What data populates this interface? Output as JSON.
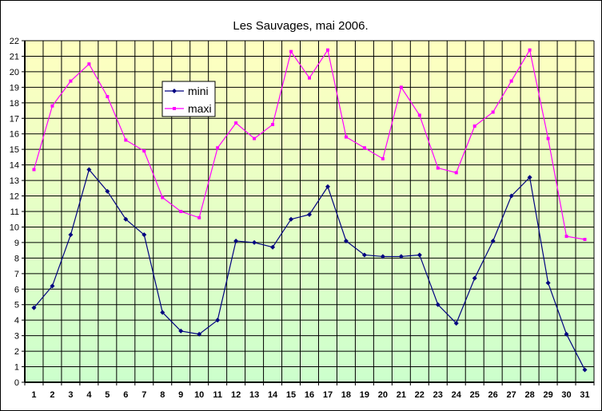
{
  "chart_data": {
    "type": "line",
    "title": "Les Sauvages, mai 2006.",
    "xlabel": "",
    "ylabel": "",
    "ylim": [
      0,
      22
    ],
    "grid": true,
    "legend_position": "upper-left-inside",
    "categories": [
      "1",
      "2",
      "3",
      "4",
      "5",
      "6",
      "7",
      "8",
      "9",
      "10",
      "11",
      "12",
      "13",
      "14",
      "15",
      "16",
      "17",
      "18",
      "19",
      "20",
      "21",
      "22",
      "23",
      "24",
      "25",
      "26",
      "27",
      "28",
      "29",
      "30",
      "31"
    ],
    "yticks": [
      "0",
      "1",
      "2",
      "3",
      "4",
      "5",
      "6",
      "7",
      "8",
      "9",
      "10",
      "11",
      "12",
      "13",
      "14",
      "15",
      "16",
      "17",
      "18",
      "19",
      "20",
      "21",
      "22"
    ],
    "series": [
      {
        "name": "mini",
        "color": "#000080",
        "marker": "diamond",
        "values": [
          4.8,
          6.2,
          9.5,
          13.7,
          12.3,
          10.5,
          9.5,
          4.5,
          3.3,
          3.1,
          4.0,
          9.1,
          9.0,
          8.7,
          10.5,
          10.8,
          12.6,
          9.1,
          8.2,
          8.1,
          8.1,
          8.2,
          5.0,
          3.8,
          6.7,
          9.1,
          12.0,
          13.2,
          6.4,
          3.1,
          0.8
        ]
      },
      {
        "name": "maxi",
        "color": "#ff00ff",
        "marker": "square",
        "values": [
          13.7,
          17.8,
          19.4,
          20.5,
          18.4,
          15.6,
          14.9,
          11.9,
          11.0,
          10.6,
          15.1,
          16.7,
          15.7,
          16.6,
          21.3,
          19.6,
          21.4,
          15.8,
          15.1,
          14.4,
          19.0,
          17.2,
          13.8,
          13.5,
          16.5,
          17.4,
          19.4,
          21.4,
          15.7,
          9.4,
          9.2
        ]
      }
    ]
  }
}
